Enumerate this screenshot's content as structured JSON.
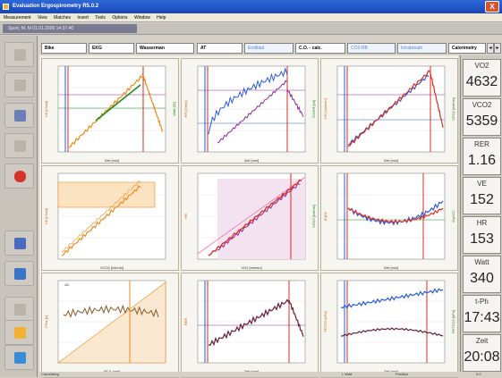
{
  "window": {
    "title": "Evaluation Ergospirometry R5.0.2",
    "close_label": "X"
  },
  "menu": [
    "Measurement",
    "View",
    "Matches",
    "Insert",
    "Tools",
    "Options",
    "Window",
    "Help"
  ],
  "infobar": {
    "path": "Sport, M. M    01.01.2000 14:37:40"
  },
  "tabs": [
    {
      "label": "Bike",
      "dim": false
    },
    {
      "label": "EKG",
      "dim": false
    },
    {
      "label": "Wasserman",
      "dim": false
    },
    {
      "label": "AT",
      "dim": false
    },
    {
      "label": "Endtidal",
      "dim": true
    },
    {
      "label": "C.O. - calc.",
      "dim": false
    },
    {
      "label": "CO2-RB",
      "dim": true
    },
    {
      "label": "Intrabreath",
      "dim": true
    },
    {
      "label": "Calorimetry",
      "dim": false
    }
  ],
  "tab_nav": {
    "prev": "◂",
    "next": "▸"
  },
  "values": [
    {
      "label": "VO2",
      "value": "4632"
    },
    {
      "label": "VCO2",
      "value": "5359"
    },
    {
      "label": "RER",
      "value": "1.16"
    },
    {
      "label": "VE",
      "value": "152"
    },
    {
      "label": "HR",
      "value": "153"
    },
    {
      "label": "Watt",
      "value": "340"
    },
    {
      "label": "t-Ph",
      "value": "17:43"
    },
    {
      "label": "Zeit",
      "value": "20:08"
    }
  ],
  "panel_text": {
    "p1": {
      "xlabel": "Zeit [min]",
      "ylabel_left": "VE [L/min]",
      "ylabel_right": "Watt [W]"
    },
    "p2": {
      "xlabel": "Zeit [min]",
      "ylabel_left": "HR [1/min]",
      "ylabel_right": "O2/HR [ml]"
    },
    "p3": {
      "xlabel": "Zeit [min]",
      "ylabel_left": "VO2 [ml/min]",
      "ylabel_right": "VCO2 [ml/min]"
    },
    "p4": {
      "xlabel": "VCO2 [ml/min]",
      "ylabel_left": "VE [L/min]"
    },
    "p5": {
      "xlabel": "VO2 [ml/min]",
      "ylabel_left": "HR",
      "ylabel_right": "VCO2 [ml/min]"
    },
    "p6": {
      "xlabel": "Zeit [min]",
      "ylabel_left": "EqO2",
      "ylabel_right": "EqCO2"
    },
    "p7": {
      "xlabel": "VE [L/min]",
      "ylabel_left": "VTex [L]",
      "corner": "AC"
    },
    "p8": {
      "xlabel": "Zeit [min]",
      "ylabel_left": "RER"
    },
    "p9": {
      "xlabel": "Zeit [min]",
      "ylabel_left": "PETO2 [kPa]",
      "ylabel_right": "PETCO2 [kPa]"
    }
  },
  "status": {
    "left": "Calculating",
    "mid1": "L.Watt",
    "mid2": "Position",
    "right": "0.0"
  },
  "colors": {
    "orange": "#f08a1a",
    "green": "#1a8a1a",
    "red": "#e02a1e",
    "blue": "#2a5bd8",
    "purple": "#8a2a9a",
    "brown": "#8a5a2a",
    "maroon": "#6a1a3a",
    "pink": "#e87ab0"
  }
}
